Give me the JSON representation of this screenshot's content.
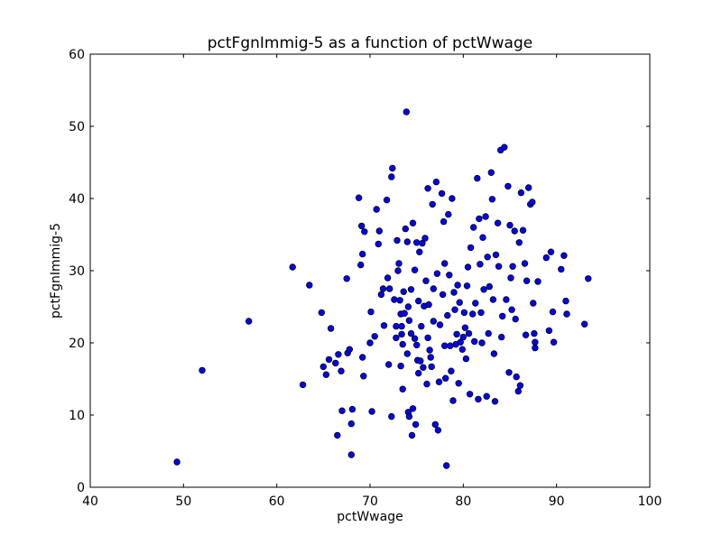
{
  "chart_data": {
    "type": "scatter",
    "title": "pctFgnImmig-5 as a function of pctWwage",
    "xlabel": "pctWwage",
    "ylabel": "pctFgnImmig-5",
    "xlim": [
      40,
      100
    ],
    "ylim": [
      0,
      60
    ],
    "xticks": [
      "40",
      "50",
      "60",
      "70",
      "80",
      "90",
      "100"
    ],
    "yticks": [
      "0",
      "10",
      "20",
      "30",
      "40",
      "50",
      "60"
    ],
    "grid": false,
    "legend": "none",
    "marker_color": "#0000ff",
    "marker_edge_color": "#000000",
    "points": [
      [
        49.3,
        3.5
      ],
      [
        52.0,
        16.2
      ],
      [
        57.0,
        23.0
      ],
      [
        61.7,
        30.5
      ],
      [
        62.8,
        14.2
      ],
      [
        63.5,
        28.0
      ],
      [
        64.8,
        24.2
      ],
      [
        65.0,
        16.7
      ],
      [
        65.3,
        15.6
      ],
      [
        65.6,
        17.7
      ],
      [
        65.8,
        22.0
      ],
      [
        66.3,
        17.2
      ],
      [
        66.5,
        7.2
      ],
      [
        66.6,
        18.4
      ],
      [
        66.9,
        16.1
      ],
      [
        67.0,
        10.6
      ],
      [
        67.5,
        28.9
      ],
      [
        67.6,
        18.6
      ],
      [
        67.8,
        19.1
      ],
      [
        68.0,
        8.8
      ],
      [
        68.1,
        10.8
      ],
      [
        68.0,
        4.5
      ],
      [
        68.8,
        40.1
      ],
      [
        69.0,
        30.8
      ],
      [
        69.1,
        36.2
      ],
      [
        69.2,
        32.3
      ],
      [
        69.3,
        15.4
      ],
      [
        69.4,
        35.4
      ],
      [
        69.2,
        18.0
      ],
      [
        70.0,
        20.0
      ],
      [
        70.1,
        24.3
      ],
      [
        70.2,
        10.5
      ],
      [
        70.5,
        20.9
      ],
      [
        70.7,
        38.5
      ],
      [
        71.0,
        35.5
      ],
      [
        70.9,
        33.7
      ],
      [
        71.2,
        26.7
      ],
      [
        71.5,
        22.4
      ],
      [
        71.4,
        27.5
      ],
      [
        71.8,
        39.8
      ],
      [
        71.9,
        29.0
      ],
      [
        72.0,
        17.0
      ],
      [
        72.1,
        27.5
      ],
      [
        72.3,
        9.8
      ],
      [
        72.4,
        44.2
      ],
      [
        72.3,
        43.0
      ],
      [
        72.6,
        26.0
      ],
      [
        72.8,
        22.3
      ],
      [
        72.9,
        34.2
      ],
      [
        73.0,
        30.0
      ],
      [
        72.8,
        20.7
      ],
      [
        73.1,
        31.0
      ],
      [
        73.2,
        25.9
      ],
      [
        73.3,
        24.0
      ],
      [
        73.3,
        16.8
      ],
      [
        73.4,
        22.3
      ],
      [
        73.4,
        21.2
      ],
      [
        73.5,
        13.6
      ],
      [
        73.5,
        19.8
      ],
      [
        73.6,
        27.1
      ],
      [
        73.7,
        24.1
      ],
      [
        73.9,
        52.0
      ],
      [
        73.8,
        35.8
      ],
      [
        74.0,
        34.0
      ],
      [
        74.0,
        18.5
      ],
      [
        74.1,
        25.0
      ],
      [
        74.1,
        10.4
      ],
      [
        74.2,
        9.8
      ],
      [
        74.2,
        23.1
      ],
      [
        74.4,
        27.4
      ],
      [
        74.4,
        21.3
      ],
      [
        74.5,
        7.2
      ],
      [
        74.6,
        36.6
      ],
      [
        74.6,
        10.9
      ],
      [
        74.8,
        30.1
      ],
      [
        74.8,
        20.6
      ],
      [
        74.9,
        8.7
      ],
      [
        75.0,
        33.9
      ],
      [
        75.0,
        19.7
      ],
      [
        75.1,
        17.6
      ],
      [
        75.2,
        25.8
      ],
      [
        75.2,
        15.8
      ],
      [
        75.3,
        32.6
      ],
      [
        75.4,
        17.5
      ],
      [
        75.5,
        22.3
      ],
      [
        75.6,
        33.8
      ],
      [
        75.7,
        16.6
      ],
      [
        75.8,
        25.1
      ],
      [
        75.9,
        34.5
      ],
      [
        76.0,
        28.6
      ],
      [
        76.1,
        14.3
      ],
      [
        76.2,
        41.4
      ],
      [
        76.2,
        20.7
      ],
      [
        76.3,
        25.3
      ],
      [
        76.4,
        19.0
      ],
      [
        76.5,
        18.0
      ],
      [
        76.6,
        16.7
      ],
      [
        76.7,
        39.2
      ],
      [
        76.8,
        27.5
      ],
      [
        76.8,
        23.0
      ],
      [
        77.0,
        8.7
      ],
      [
        77.1,
        42.3
      ],
      [
        77.2,
        29.6
      ],
      [
        77.3,
        7.9
      ],
      [
        77.4,
        14.6
      ],
      [
        77.5,
        22.5
      ],
      [
        77.7,
        40.7
      ],
      [
        77.8,
        26.7
      ],
      [
        77.9,
        36.8
      ],
      [
        78.0,
        31.0
      ],
      [
        78.0,
        19.6
      ],
      [
        78.1,
        15.1
      ],
      [
        78.2,
        3.0
      ],
      [
        78.3,
        23.8
      ],
      [
        78.4,
        37.8
      ],
      [
        78.5,
        29.4
      ],
      [
        78.6,
        19.6
      ],
      [
        78.7,
        16.1
      ],
      [
        78.8,
        40.0
      ],
      [
        78.9,
        12.0
      ],
      [
        79.0,
        27.0
      ],
      [
        79.1,
        24.6
      ],
      [
        79.2,
        19.8
      ],
      [
        79.3,
        21.2
      ],
      [
        79.4,
        28.0
      ],
      [
        79.5,
        14.4
      ],
      [
        79.6,
        25.6
      ],
      [
        79.7,
        20.1
      ],
      [
        79.9,
        19.1
      ],
      [
        80.0,
        20.8
      ],
      [
        80.1,
        24.2
      ],
      [
        80.2,
        22.1
      ],
      [
        80.3,
        17.8
      ],
      [
        80.4,
        27.9
      ],
      [
        80.5,
        30.5
      ],
      [
        80.6,
        21.3
      ],
      [
        80.7,
        12.9
      ],
      [
        80.8,
        33.2
      ],
      [
        81.0,
        24.0
      ],
      [
        81.1,
        36.0
      ],
      [
        81.2,
        20.2
      ],
      [
        81.3,
        25.5
      ],
      [
        81.5,
        42.8
      ],
      [
        81.6,
        12.2
      ],
      [
        81.7,
        37.2
      ],
      [
        81.8,
        30.9
      ],
      [
        81.9,
        24.2
      ],
      [
        82.0,
        20.0
      ],
      [
        82.1,
        34.6
      ],
      [
        82.2,
        27.4
      ],
      [
        82.4,
        37.5
      ],
      [
        82.5,
        12.6
      ],
      [
        82.6,
        31.9
      ],
      [
        82.7,
        21.3
      ],
      [
        82.8,
        27.8
      ],
      [
        83.0,
        43.6
      ],
      [
        83.1,
        39.9
      ],
      [
        83.2,
        26.0
      ],
      [
        83.3,
        18.5
      ],
      [
        83.4,
        11.9
      ],
      [
        83.5,
        32.2
      ],
      [
        83.7,
        36.6
      ],
      [
        83.8,
        30.6
      ],
      [
        84.0,
        46.7
      ],
      [
        84.1,
        20.8
      ],
      [
        84.2,
        23.7
      ],
      [
        84.4,
        47.1
      ],
      [
        84.6,
        26.0
      ],
      [
        84.8,
        41.7
      ],
      [
        84.9,
        15.9
      ],
      [
        85.0,
        36.3
      ],
      [
        85.1,
        29.0
      ],
      [
        85.2,
        24.6
      ],
      [
        85.3,
        30.6
      ],
      [
        85.5,
        35.5
      ],
      [
        85.6,
        23.3
      ],
      [
        85.7,
        15.3
      ],
      [
        85.9,
        13.3
      ],
      [
        86.0,
        33.9
      ],
      [
        86.1,
        14.1
      ],
      [
        86.2,
        40.8
      ],
      [
        86.4,
        35.6
      ],
      [
        86.6,
        31.0
      ],
      [
        86.7,
        21.1
      ],
      [
        86.8,
        28.6
      ],
      [
        87.0,
        41.5
      ],
      [
        87.2,
        39.2
      ],
      [
        87.4,
        39.5
      ],
      [
        87.5,
        25.5
      ],
      [
        87.6,
        21.3
      ],
      [
        87.7,
        20.1
      ],
      [
        87.7,
        19.3
      ],
      [
        88.0,
        28.5
      ],
      [
        88.9,
        31.8
      ],
      [
        89.2,
        21.7
      ],
      [
        89.4,
        32.6
      ],
      [
        89.6,
        24.3
      ],
      [
        89.7,
        20.1
      ],
      [
        90.5,
        30.2
      ],
      [
        90.8,
        32.1
      ],
      [
        91.0,
        25.8
      ],
      [
        91.1,
        24.0
      ],
      [
        93.0,
        22.6
      ],
      [
        93.4,
        28.9
      ]
    ]
  }
}
